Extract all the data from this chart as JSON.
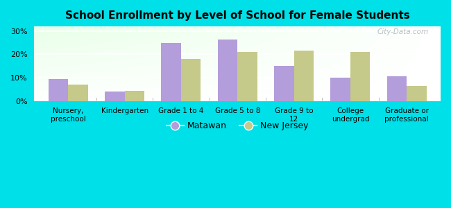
{
  "title": "School Enrollment by Level of School for Female Students",
  "categories": [
    "Nursery,\npreschool",
    "Kindergarten",
    "Grade 1 to 4",
    "Grade 5 to 8",
    "Grade 9 to\n12",
    "College\nundergrad",
    "Graduate or\nprofessional"
  ],
  "matawan": [
    9.5,
    4.0,
    25.0,
    26.5,
    15.0,
    10.0,
    10.5
  ],
  "new_jersey": [
    7.0,
    4.5,
    18.0,
    21.0,
    21.5,
    21.0,
    6.5
  ],
  "matawan_color": "#b39ddb",
  "nj_color": "#c5c98a",
  "bg_color": "#00e0e8",
  "yticks": [
    0,
    10,
    20,
    30
  ],
  "ylim": [
    0,
    32
  ],
  "bar_width": 0.35,
  "legend_matawan": "Matawan",
  "legend_nj": "New Jersey",
  "watermark": "City-Data.com"
}
